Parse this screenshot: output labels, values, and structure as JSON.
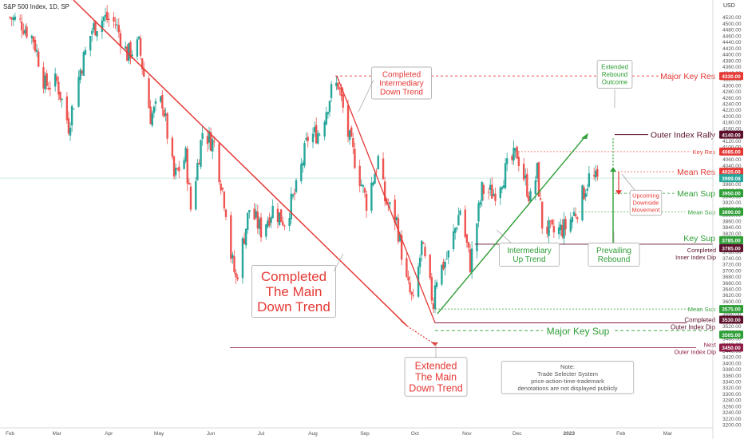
{
  "symbol": "S&P 500 Index, 1D, SP",
  "currency": "USD",
  "colors": {
    "up": "#26a69a",
    "down": "#ef5350",
    "red": "#e53935",
    "green": "#2e9e36",
    "maroon": "#8e1b45",
    "darkmaroon": "#5b0f2b",
    "gray": "#555555"
  },
  "chart_data": {
    "type": "candlestick",
    "title": "S&P 500 Index, 1D, SP",
    "ylim": [
      3190,
      4540
    ],
    "y_ticks": [
      3200,
      3220,
      3240,
      3260,
      3280,
      3300,
      3320,
      3340,
      3360,
      3380,
      3400,
      3420,
      3440,
      3460,
      3480,
      3500,
      3520,
      3540,
      3560,
      3580,
      3600,
      3620,
      3640,
      3660,
      3680,
      3700,
      3720,
      3740,
      3760,
      3780,
      3800,
      3820,
      3840,
      3860,
      3880,
      3900,
      3920,
      3940,
      3960,
      3980,
      4000,
      4020,
      4040,
      4060,
      4080,
      4100,
      4120,
      4140,
      4160,
      4180,
      4200,
      4220,
      4240,
      4260,
      4280,
      4300,
      4320,
      4340,
      4360,
      4380,
      4400,
      4420,
      4440,
      4460,
      4480,
      4500,
      4520
    ],
    "x_ticks": [
      "Feb",
      "Mar",
      "Apr",
      "May",
      "Jun",
      "Jul",
      "Aug",
      "Sep",
      "Oct",
      "Nov",
      "Dec",
      "2023",
      "Feb",
      "Mar"
    ],
    "close_points": [
      [
        "2022-02-01",
        4520
      ],
      [
        "2022-02-08",
        4500
      ],
      [
        "2022-02-15",
        4450
      ],
      [
        "2022-02-22",
        4300
      ],
      [
        "2022-03-01",
        4310
      ],
      [
        "2022-03-08",
        4170
      ],
      [
        "2022-03-15",
        4350
      ],
      [
        "2022-03-22",
        4480
      ],
      [
        "2022-03-29",
        4520
      ],
      [
        "2022-04-05",
        4500
      ],
      [
        "2022-04-12",
        4400
      ],
      [
        "2022-04-19",
        4430
      ],
      [
        "2022-04-26",
        4200
      ],
      [
        "2022-05-03",
        4250
      ],
      [
        "2022-05-10",
        4000
      ],
      [
        "2022-05-17",
        4070
      ],
      [
        "2022-05-20",
        3900
      ],
      [
        "2022-05-27",
        4150
      ],
      [
        "2022-06-03",
        4110
      ],
      [
        "2022-06-10",
        3900
      ],
      [
        "2022-06-13",
        3750
      ],
      [
        "2022-06-16",
        3670
      ],
      [
        "2022-06-24",
        3900
      ],
      [
        "2022-07-01",
        3830
      ],
      [
        "2022-07-08",
        3900
      ],
      [
        "2022-07-15",
        3860
      ],
      [
        "2022-07-22",
        3960
      ],
      [
        "2022-07-29",
        4130
      ],
      [
        "2022-08-05",
        4150
      ],
      [
        "2022-08-12",
        4280
      ],
      [
        "2022-08-16",
        4305
      ],
      [
        "2022-08-22",
        4140
      ],
      [
        "2022-08-26",
        4060
      ],
      [
        "2022-09-02",
        3920
      ],
      [
        "2022-09-09",
        4060
      ],
      [
        "2022-09-13",
        3930
      ],
      [
        "2022-09-20",
        3860
      ],
      [
        "2022-09-26",
        3660
      ],
      [
        "2022-09-30",
        3590
      ],
      [
        "2022-10-05",
        3780
      ],
      [
        "2022-10-12",
        3590
      ],
      [
        "2022-10-13",
        3670
      ],
      [
        "2022-10-21",
        3750
      ],
      [
        "2022-10-28",
        3900
      ],
      [
        "2022-11-03",
        3720
      ],
      [
        "2022-11-10",
        3960
      ],
      [
        "2022-11-17",
        3950
      ],
      [
        "2022-11-25",
        4030
      ],
      [
        "2022-12-01",
        4080
      ],
      [
        "2022-12-09",
        3930
      ],
      [
        "2022-12-13",
        4020
      ],
      [
        "2022-12-16",
        3850
      ],
      [
        "2022-12-22",
        3820
      ],
      [
        "2022-12-30",
        3840
      ],
      [
        "2023-01-06",
        3900
      ],
      [
        "2023-01-13",
        4000
      ],
      [
        "2023-01-18",
        3990
      ]
    ],
    "levels": [
      {
        "name": "Major Key Res",
        "value": 4330
      },
      {
        "name": "Outer Index Rally",
        "value": 4140
      },
      {
        "name": "Key Res",
        "value": 4085
      },
      {
        "name": "Mean Res",
        "value": 4020
      },
      {
        "name": "Mean Sup",
        "value": 3950
      },
      {
        "name": "Mean Sup",
        "value": 3890
      },
      {
        "name": "Key Sup",
        "value": 3785
      },
      {
        "name": "Completed Inner Index Dip",
        "value": 3785
      },
      {
        "name": "Mean Sup",
        "value": 3575
      },
      {
        "name": "Completed Outer Index Dip",
        "value": 3530
      },
      {
        "name": "Major Key Sup",
        "value": 3505
      },
      {
        "name": "Next Outer Index Dip",
        "value": 3450
      }
    ],
    "last_price": 3999.08
  },
  "price_tags": [
    "4330.00",
    "4140.00",
    "4085.00",
    "4020.00",
    "3999.08",
    "3950.00",
    "3890.00",
    "3785.00",
    "3785.00",
    "3575.00",
    "3530.00",
    "3505.00",
    "3450.00"
  ],
  "levels_text": {
    "major_key_res": "Major Key Res",
    "outer_index_rally": "Outer Index Rally",
    "key_res": "Key Res",
    "mean_res": "Mean Res",
    "mean_sup_1": "Mean Sup",
    "mean_sup_2": "Mean Sup",
    "key_sup": "Key Sup",
    "completed_inner_1": "Completed",
    "completed_inner_2": "Inner Index Dip",
    "mean_sup_3": "Mean Sup",
    "completed_outer_1": "Completed",
    "completed_outer_2": "Outer Index Dip",
    "major_key_sup": "Major Key Sup",
    "next_1": "Next",
    "next_2": "Outer Index Dip"
  },
  "callouts": {
    "completed_main": [
      "Completed",
      "The Main",
      "Down Trend"
    ],
    "completed_intermediary": [
      "Completed",
      "Intermediary",
      "Down Trend"
    ],
    "extended_main": [
      "Extended",
      "The Main",
      "Down Trend"
    ],
    "intermediary_up": [
      "Intermediary",
      "Up Trend"
    ],
    "extended_rebound": [
      "Extended",
      "Rebound",
      "Outcome"
    ],
    "prevailing_rebound": [
      "Prevailing",
      "Rebound"
    ],
    "upcoming_downside": [
      "Upcoming",
      "Downside",
      "Movement"
    ],
    "note": [
      "Note:",
      "Trade Selecter System",
      "price-action-time-trademark",
      "denotations are not displayed publicly"
    ]
  }
}
